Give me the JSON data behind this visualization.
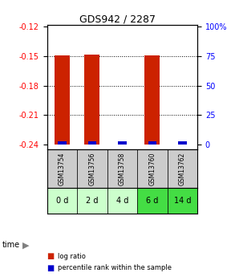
{
  "title": "GDS942 / 2287",
  "samples": [
    "GSM13754",
    "GSM13756",
    "GSM13758",
    "GSM13760",
    "GSM13762"
  ],
  "time_labels": [
    "0 d",
    "2 d",
    "4 d",
    "6 d",
    "14 d"
  ],
  "log_ratios": [
    -0.149,
    -0.148,
    -0.24,
    -0.149,
    -0.24
  ],
  "log_ratio_bottoms": [
    -0.24,
    -0.24,
    -0.24,
    -0.24,
    -0.24
  ],
  "percentile_ranks": [
    5.0,
    4.5,
    1.5,
    5.5,
    0.0
  ],
  "ylim_main": [
    -0.245,
    -0.118
  ],
  "yticks_left": [
    -0.12,
    -0.15,
    -0.18,
    -0.21,
    -0.24
  ],
  "yticks_right_vals": [
    100,
    75,
    50,
    25,
    0
  ],
  "yticks_right_pos": [
    -0.12,
    -0.15,
    -0.18,
    -0.21,
    -0.24
  ],
  "bar_color_red": "#cc2200",
  "bar_color_blue": "#0000cc",
  "time_row_colors": [
    "#ccffcc",
    "#ccffcc",
    "#ccffcc",
    "#44dd44",
    "#44dd44"
  ],
  "gsm_row_color": "#cccccc",
  "fig_bg": "#ffffff",
  "bar_width": 0.5,
  "percentile_scale_min": -0.24,
  "percentile_scale_max": -0.12
}
